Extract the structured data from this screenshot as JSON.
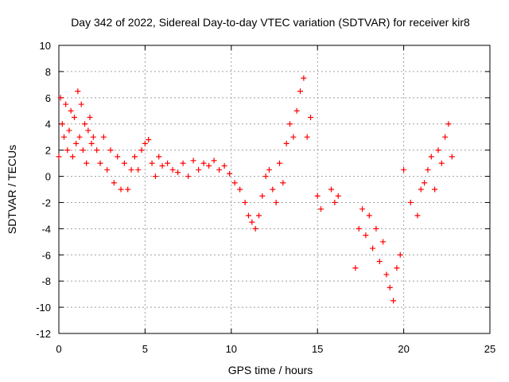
{
  "chart_data": {
    "type": "scatter",
    "title": "Day 342 of 2022, Sidereal Day-to-day VTEC variation (SDTVAR) for receiver kir8",
    "xlabel": "GPS time / hours",
    "ylabel": "SDTVAR / TECUs",
    "xlim": [
      0,
      25
    ],
    "ylim": [
      -12,
      10
    ],
    "xticks": [
      "0",
      "5",
      "10",
      "15",
      "20",
      "25"
    ],
    "yticks": [
      "10",
      "8",
      "6",
      "4",
      "2",
      "0",
      "-2",
      "-4",
      "-6",
      "-8",
      "-10",
      "-12"
    ],
    "grid": true,
    "marker": "plus",
    "series_color": "#ff0000",
    "series": [
      {
        "name": "SDTVAR",
        "x": [
          0.0,
          0.1,
          0.2,
          0.3,
          0.4,
          0.5,
          0.6,
          0.7,
          0.8,
          0.9,
          1.0,
          1.1,
          1.2,
          1.3,
          1.4,
          1.5,
          1.6,
          1.7,
          1.8,
          1.9,
          2.0,
          2.2,
          2.4,
          2.6,
          2.8,
          3.0,
          3.2,
          3.4,
          3.6,
          3.8,
          4.0,
          4.2,
          4.4,
          4.6,
          4.8,
          5.0,
          5.2,
          5.4,
          5.6,
          5.8,
          6.0,
          6.3,
          6.6,
          6.9,
          7.2,
          7.5,
          7.8,
          8.1,
          8.4,
          8.7,
          9.0,
          9.3,
          9.6,
          9.9,
          10.2,
          10.5,
          10.8,
          11.0,
          11.2,
          11.4,
          11.6,
          11.8,
          12.0,
          12.2,
          12.4,
          12.6,
          12.8,
          13.0,
          13.2,
          13.4,
          13.6,
          13.8,
          14.0,
          14.2,
          14.4,
          14.6,
          15.0,
          15.2,
          15.8,
          16.0,
          16.2,
          17.2,
          17.4,
          17.6,
          17.8,
          18.0,
          18.2,
          18.4,
          18.6,
          18.8,
          19.0,
          19.2,
          19.4,
          19.6,
          19.8,
          20.0,
          20.4,
          20.8,
          21.0,
          21.2,
          21.4,
          21.6,
          21.8,
          22.0,
          22.2,
          22.4,
          22.6,
          22.8
        ],
        "y": [
          1.5,
          6.0,
          4.0,
          3.0,
          5.5,
          2.0,
          3.5,
          5.0,
          1.5,
          4.5,
          2.5,
          6.5,
          3.0,
          5.5,
          2.0,
          4.0,
          1.0,
          3.5,
          4.5,
          2.5,
          3.0,
          2.0,
          1.0,
          3.0,
          0.5,
          2.0,
          -0.5,
          1.5,
          -1.0,
          1.0,
          -1.0,
          0.5,
          1.5,
          0.5,
          2.0,
          2.5,
          2.8,
          1.0,
          0.0,
          1.5,
          0.8,
          1.0,
          0.5,
          0.3,
          1.0,
          0.0,
          1.2,
          0.5,
          1.0,
          0.8,
          1.2,
          0.5,
          0.8,
          0.2,
          -0.5,
          -1.0,
          -2.0,
          -3.0,
          -3.5,
          -4.0,
          -3.0,
          -1.5,
          0.0,
          0.5,
          -1.0,
          -2.0,
          1.0,
          -0.5,
          2.5,
          4.0,
          3.0,
          5.0,
          6.5,
          7.5,
          3.0,
          4.5,
          -1.5,
          -2.5,
          -1.0,
          -2.0,
          -1.5,
          -7.0,
          -4.0,
          -2.5,
          -4.5,
          -3.0,
          -5.5,
          -4.0,
          -6.5,
          -5.0,
          -7.5,
          -8.5,
          -9.5,
          -7.0,
          -6.0,
          0.5,
          -2.0,
          -3.0,
          -1.0,
          -0.5,
          0.5,
          1.5,
          -1.0,
          2.0,
          1.0,
          3.0,
          4.0,
          1.5
        ]
      }
    ]
  }
}
